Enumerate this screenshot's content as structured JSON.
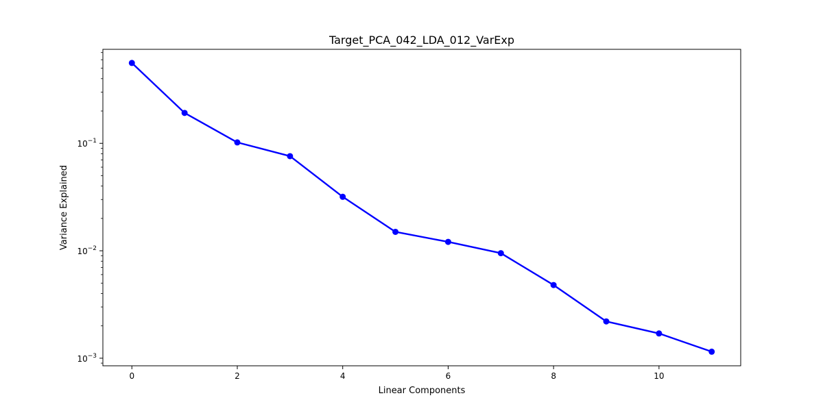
{
  "chart_data": {
    "type": "line",
    "title": "Target_PCA_042_LDA_012_VarExp",
    "xlabel": "Linear Components",
    "ylabel": "Variance Explained",
    "yscale": "log",
    "xlim": [
      -0.55,
      11.55
    ],
    "ylim": [
      0.00085,
      0.75
    ],
    "x_ticks": [
      0,
      2,
      4,
      6,
      8,
      10
    ],
    "y_ticks": [
      {
        "value": 0.001,
        "base": "10",
        "exp": "−3"
      },
      {
        "value": 0.01,
        "base": "10",
        "exp": "−2"
      },
      {
        "value": 0.1,
        "base": "10",
        "exp": "−1"
      }
    ],
    "grid": false,
    "legend": "none",
    "series": [
      {
        "color": "#0000ff",
        "marker": "circle",
        "x": [
          0,
          1,
          2,
          3,
          4,
          5,
          6,
          7,
          8,
          9,
          10,
          11
        ],
        "values": [
          0.56,
          0.192,
          0.102,
          0.076,
          0.0318,
          0.015,
          0.0121,
          0.0095,
          0.0048,
          0.0022,
          0.0017,
          0.00115
        ]
      }
    ]
  }
}
